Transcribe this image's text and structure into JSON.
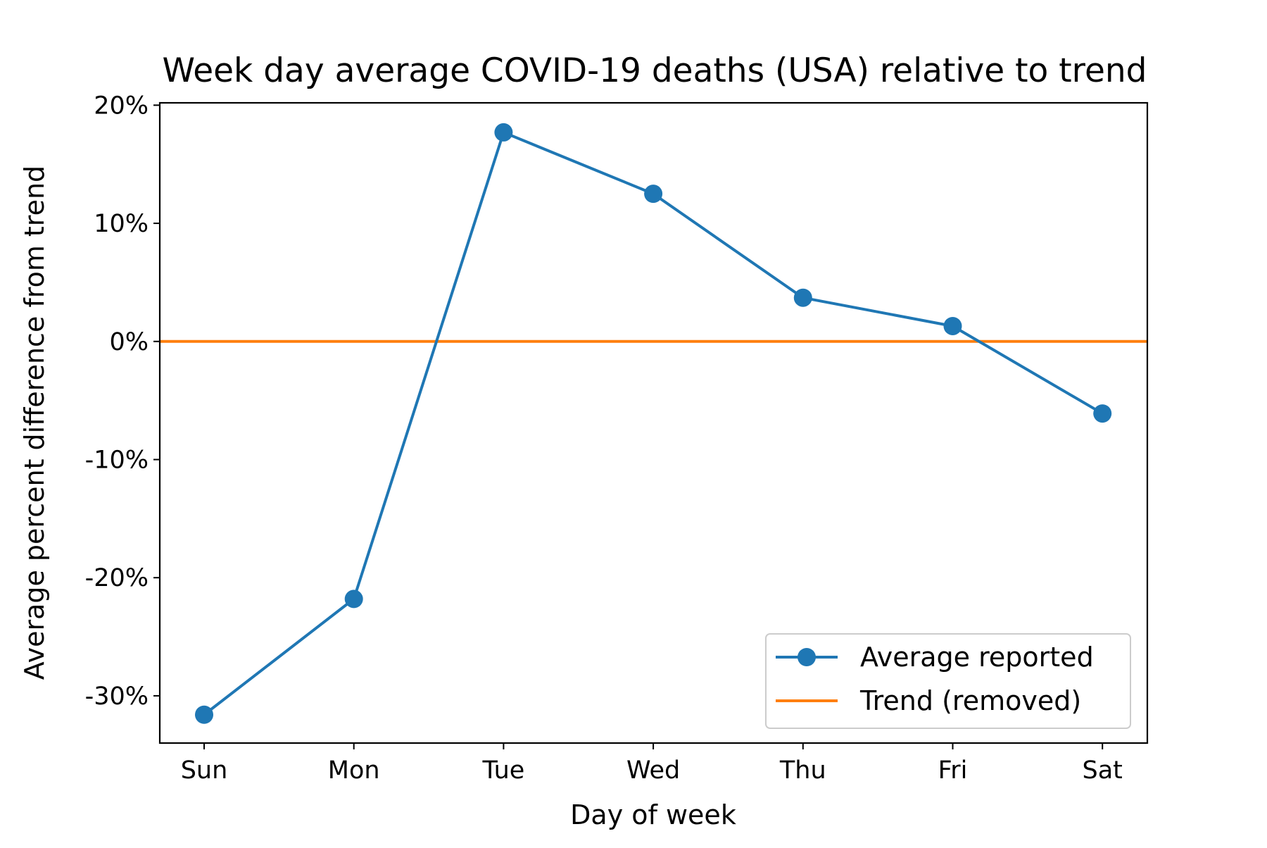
{
  "chart_data": {
    "type": "line",
    "title": "Week day average COVID-19 deaths (USA) relative to trend",
    "xlabel": "Day of week",
    "ylabel": "Average percent difference from trend",
    "categories": [
      "Sun",
      "Mon",
      "Tue",
      "Wed",
      "Thu",
      "Fri",
      "Sat"
    ],
    "ylim": [
      -34,
      20.2
    ],
    "yticks": [
      20,
      10,
      0,
      -10,
      -20,
      -30
    ],
    "ytick_labels": [
      "20%",
      "10%",
      "0%",
      "-10%",
      "-20%",
      "-30%"
    ],
    "grid": false,
    "legend_position": "bottom-right",
    "series": [
      {
        "name": "Average reported",
        "values": [
          -31.6,
          -21.8,
          17.7,
          12.5,
          3.7,
          1.3,
          -6.1
        ],
        "color": "#1f77b4",
        "marker": "circle"
      }
    ],
    "trend": {
      "name": "Trend (removed)",
      "value": 0,
      "color": "#ff7f0e"
    }
  }
}
